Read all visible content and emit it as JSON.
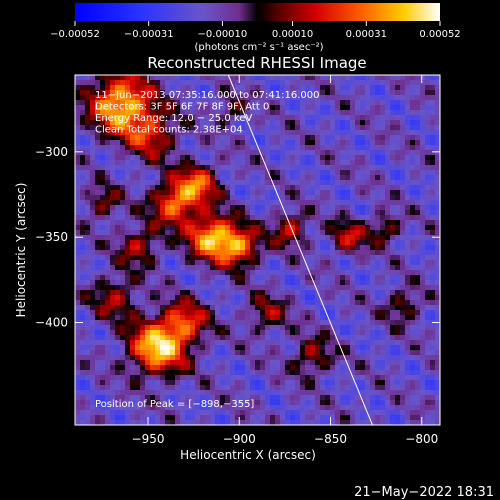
{
  "chart_data": {
    "type": "heatmap",
    "title": "Reconstructed RHESSI Image",
    "xlabel": "Heliocentric X (arcsec)",
    "ylabel": "Heliocentric Y (arcsec)",
    "xlim": [
      -990,
      -790
    ],
    "ylim": [
      -460,
      -255
    ],
    "x_ticks": [
      -950,
      -900,
      -850,
      -800
    ],
    "x_tick_labels": [
      "−950",
      "−900",
      "−850",
      "−800"
    ],
    "y_ticks": [
      -300,
      -350,
      -400
    ],
    "y_tick_labels": [
      "−300",
      "−350",
      "−400"
    ],
    "colorbar": {
      "range": [
        -0.00052,
        0.00052
      ],
      "ticks": [
        -0.00052,
        -0.00031,
        -0.0001,
        0.0001,
        0.00031,
        0.00052
      ],
      "tick_labels": [
        "−0.00052",
        "−0.00031",
        "−0.00010",
        "0.00010",
        "0.00031",
        "0.00052"
      ],
      "unit_label": "(photons cm⁻² s⁻¹ asec⁻²)"
    },
    "annotations": [
      "11−Jun−2013 07:35:16.000 to 07:41:16.000",
      "Detectors: 3F 5F 6F 7F 8F 9F, Att 0",
      "Energy Range: 12.0 − 25.0 keV",
      "Clean     Total counts: 2.38E+04"
    ],
    "peak_label": "Position of Peak = [−898,−355]",
    "peak_position": [
      -898,
      -355
    ],
    "limb_line": [
      [
        -906,
        -255
      ],
      [
        -827,
        -460
      ]
    ],
    "colors": {
      "background": "#000000",
      "text": "#ffffff"
    }
  },
  "footer": {
    "timestamp": "21−May−2022 18:31"
  }
}
